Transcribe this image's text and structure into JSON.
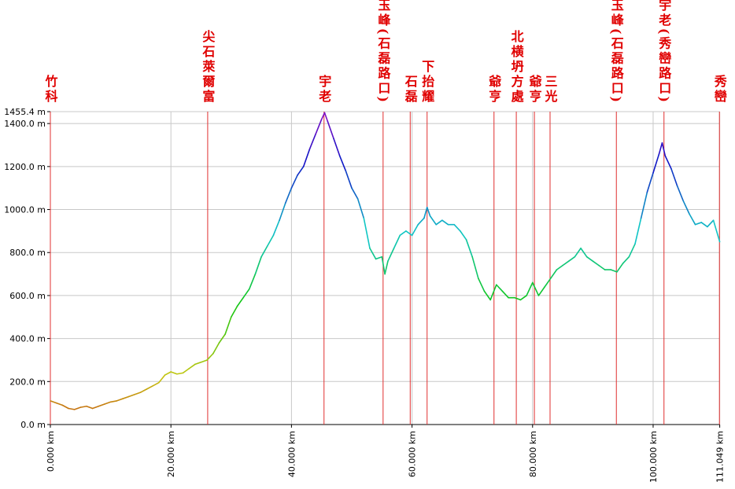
{
  "chart_data": {
    "type": "elevation-profile",
    "xlim": [
      0,
      111.049
    ],
    "ylim": [
      0,
      1455.4
    ],
    "xticks": [
      {
        "value": 0,
        "label": "0.000 km"
      },
      {
        "value": 20,
        "label": "20.000 km"
      },
      {
        "value": 40,
        "label": "40.000 km"
      },
      {
        "value": 60,
        "label": "60.000 km"
      },
      {
        "value": 80,
        "label": "80.000 km"
      },
      {
        "value": 100,
        "label": "100.000 km"
      },
      {
        "value": 111.049,
        "label": "111.049 km"
      }
    ],
    "yticks": [
      {
        "value": 0,
        "label": "0.0 m"
      },
      {
        "value": 200,
        "label": "200.0 m"
      },
      {
        "value": 400,
        "label": "400.0 m"
      },
      {
        "value": 600,
        "label": "600.0 m"
      },
      {
        "value": 800,
        "label": "800.0 m"
      },
      {
        "value": 1000,
        "label": "1000.0 m"
      },
      {
        "value": 1200,
        "label": "1200.0 m"
      },
      {
        "value": 1400,
        "label": "1400.0 m"
      },
      {
        "value": 1455.4,
        "label": "1455.4 m"
      }
    ],
    "grid": true,
    "waypoints": [
      {
        "name": "竹科",
        "km": 0
      },
      {
        "name": "尖石萊爾富",
        "km": 26.1
      },
      {
        "name": "宇老",
        "km": 45.4
      },
      {
        "name": "玉峰(石磊路口)",
        "km": 55.2
      },
      {
        "name": "石磊",
        "km": 59.7
      },
      {
        "name": "下抬耀",
        "km": 62.5
      },
      {
        "name": "爺亨",
        "km": 73.6
      },
      {
        "name": "北横坍方處",
        "km": 77.3
      },
      {
        "name": "爺亨",
        "km": 80.3
      },
      {
        "name": "三光",
        "km": 82.9
      },
      {
        "name": "玉峰(石磊路口)",
        "km": 93.9
      },
      {
        "name": "宇老(秀巒路口)",
        "km": 101.8
      },
      {
        "name": "秀巒",
        "km": 111.0
      }
    ],
    "series": [
      {
        "x": [
          0,
          1,
          2,
          3,
          4,
          5,
          6,
          7,
          8,
          9,
          10,
          11,
          12,
          13,
          14,
          15,
          16,
          17,
          18,
          19,
          20,
          21,
          22,
          23,
          24,
          25,
          26,
          27,
          28,
          29,
          30,
          31,
          32,
          33,
          34,
          35,
          36,
          37,
          38,
          39,
          40,
          41,
          42,
          43,
          44,
          45,
          45.5,
          46,
          47,
          48,
          49,
          50,
          51,
          52,
          53,
          54,
          55,
          55.5,
          56,
          57,
          58,
          59,
          60,
          61,
          62,
          62.5,
          63,
          64,
          65,
          66,
          67,
          68,
          69,
          70,
          71,
          72,
          73,
          74,
          75,
          76,
          77,
          78,
          79,
          80,
          81,
          82,
          83,
          84,
          85,
          86,
          87,
          88,
          89,
          90,
          91,
          92,
          93,
          94,
          95,
          96,
          97,
          98,
          99,
          100,
          101,
          101.5,
          102,
          103,
          104,
          105,
          106,
          107,
          108,
          109,
          110,
          111.049
        ],
        "values": [
          110,
          100,
          90,
          75,
          70,
          80,
          85,
          75,
          85,
          95,
          105,
          110,
          120,
          130,
          140,
          150,
          165,
          180,
          195,
          230,
          245,
          235,
          240,
          260,
          280,
          290,
          300,
          330,
          380,
          420,
          500,
          550,
          590,
          630,
          700,
          780,
          830,
          880,
          950,
          1030,
          1100,
          1160,
          1200,
          1280,
          1350,
          1420,
          1450,
          1410,
          1330,
          1250,
          1180,
          1100,
          1050,
          960,
          820,
          770,
          780,
          700,
          760,
          820,
          880,
          900,
          880,
          930,
          960,
          1010,
          970,
          930,
          950,
          930,
          930,
          900,
          860,
          780,
          680,
          620,
          580,
          650,
          620,
          590,
          590,
          580,
          600,
          660,
          600,
          640,
          680,
          720,
          740,
          760,
          780,
          820,
          780,
          760,
          740,
          720,
          720,
          710,
          750,
          780,
          840,
          960,
          1080,
          1170,
          1260,
          1310,
          1250,
          1190,
          1110,
          1040,
          980,
          930,
          940,
          920,
          950,
          850
        ]
      }
    ]
  }
}
